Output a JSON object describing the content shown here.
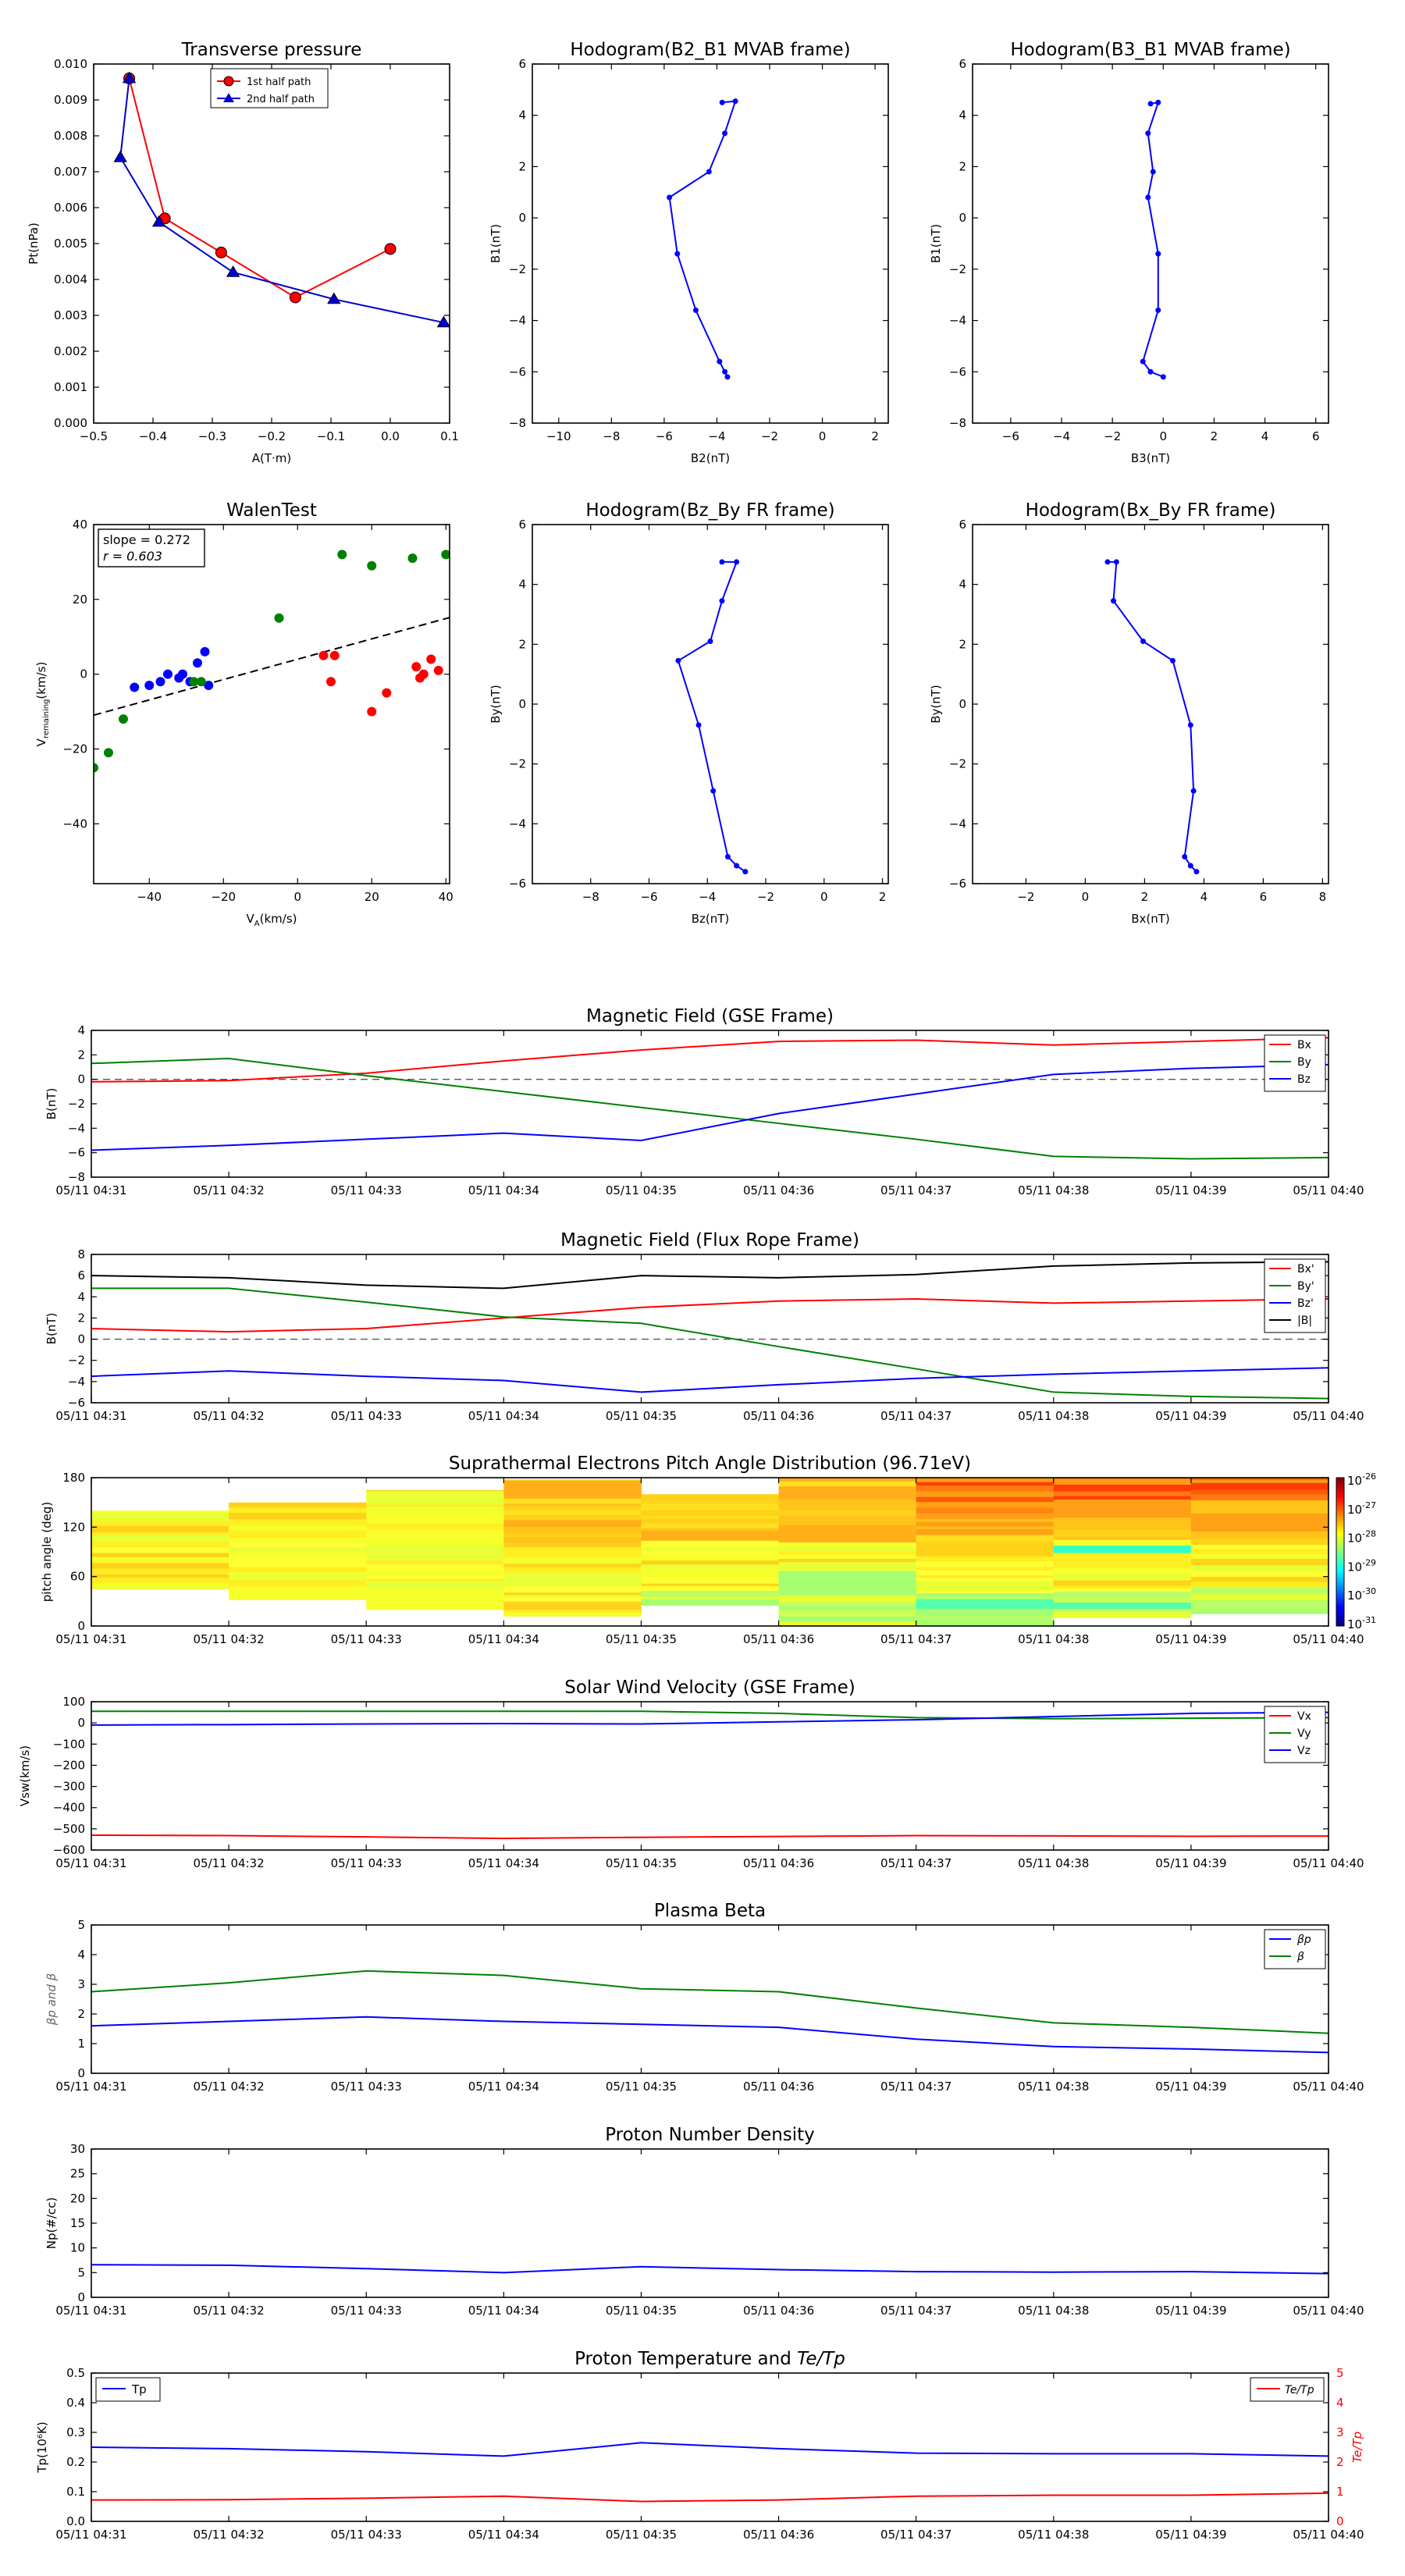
{
  "charts": [
    {
      "id": "tp",
      "title": "Transverse pressure",
      "xlabel": "A(T·m)",
      "ylabel": "Pt(nPa)",
      "xlim": [
        -0.5,
        0.1
      ],
      "ylim": [
        0.0,
        0.01
      ],
      "xticks": [
        -0.5,
        -0.4,
        -0.3,
        -0.2,
        -0.1,
        0.0,
        0.1
      ],
      "xtick_labels": [
        "−0.5",
        "−0.4",
        "−0.3",
        "−0.2",
        "−0.1",
        "0.0",
        "0.1"
      ],
      "yticks": [
        0,
        0.001,
        0.002,
        0.003,
        0.004,
        0.005,
        0.006,
        0.007,
        0.008,
        0.009,
        0.01
      ],
      "ytick_labels": [
        "0.000",
        "0.001",
        "0.002",
        "0.003",
        "0.004",
        "0.005",
        "0.006",
        "0.007",
        "0.008",
        "0.009",
        "0.010"
      ],
      "series": [
        {
          "name": "1st half path",
          "color": "#ff0000",
          "marker": "circle",
          "x": [
            0.0,
            -0.16,
            -0.285,
            -0.38,
            -0.44
          ],
          "y": [
            0.00485,
            0.0035,
            0.00475,
            0.0057,
            0.0096
          ]
        },
        {
          "name": "2nd half path",
          "color": "#0000cc",
          "marker": "triangle",
          "x": [
            -0.44,
            -0.455,
            -0.39,
            -0.265,
            -0.095,
            0.09
          ],
          "y": [
            0.0096,
            0.0074,
            0.0056,
            0.0042,
            0.00345,
            0.0028
          ]
        }
      ]
    },
    {
      "id": "h1",
      "title": "Hodogram(B2_B1 MVAB frame)",
      "xlabel": "B2(nT)",
      "ylabel": "B1(nT)",
      "xlim": [
        -11,
        2.5
      ],
      "ylim": [
        -8,
        6
      ],
      "xticks": [
        -10,
        -8,
        -6,
        -4,
        -2,
        0,
        2
      ],
      "xtick_labels": [
        "−10",
        "−8",
        "−6",
        "−4",
        "−2",
        "0",
        "2"
      ],
      "yticks": [
        -8,
        -6,
        -4,
        -2,
        0,
        2,
        4,
        6
      ],
      "ytick_labels": [
        "−8",
        "−6",
        "−4",
        "−2",
        "0",
        "2",
        "4",
        "6"
      ],
      "series": [
        {
          "color": "#0000ff",
          "marker": "dot",
          "x": [
            -3.8,
            -3.3,
            -3.7,
            -4.3,
            -5.8,
            -5.5,
            -4.8,
            -3.9,
            -3.7,
            -3.6
          ],
          "y": [
            4.5,
            4.55,
            3.3,
            1.8,
            0.8,
            -1.4,
            -3.6,
            -5.6,
            -6.0,
            -6.2
          ]
        }
      ]
    },
    {
      "id": "h2",
      "title": "Hodogram(B3_B1 MVAB frame)",
      "xlabel": "B3(nT)",
      "ylabel": "B1(nT)",
      "xlim": [
        -7.5,
        6.5
      ],
      "ylim": [
        -8,
        6
      ],
      "xticks": [
        -6,
        -4,
        -2,
        0,
        2,
        4,
        6
      ],
      "xtick_labels": [
        "−6",
        "−4",
        "−2",
        "0",
        "2",
        "4",
        "6"
      ],
      "yticks": [
        -8,
        -6,
        -4,
        -2,
        0,
        2,
        4,
        6
      ],
      "ytick_labels": [
        "−8",
        "−6",
        "−4",
        "−2",
        "0",
        "2",
        "4",
        "6"
      ],
      "series": [
        {
          "color": "#0000ff",
          "marker": "dot",
          "x": [
            -0.5,
            -0.2,
            -0.6,
            -0.4,
            -0.6,
            -0.2,
            -0.2,
            -0.8,
            -0.5,
            0.0
          ],
          "y": [
            4.45,
            4.5,
            3.3,
            1.8,
            0.8,
            -1.4,
            -3.6,
            -5.6,
            -6.0,
            -6.2
          ]
        }
      ]
    },
    {
      "id": "walen",
      "title": "WalenTest",
      "xlabel": "V_A(km/s)",
      "ylabel": "V_remaining(km/s)",
      "xlim": [
        -55,
        41
      ],
      "ylim": [
        -56,
        40
      ],
      "xticks": [
        -40,
        -20,
        0,
        20,
        40
      ],
      "xtick_labels": [
        "−40",
        "−20",
        "0",
        "20",
        "40"
      ],
      "yticks": [
        -40,
        -20,
        0,
        20,
        40
      ],
      "ytick_labels": [
        "−40",
        "−20",
        "0",
        "20",
        "40"
      ],
      "annotation": [
        "slope = 0.272",
        "r = 0.603"
      ],
      "fit": {
        "slope": 0.272,
        "intercept": 4.0
      },
      "series": [
        {
          "color": "#0000ff",
          "marker": "dot",
          "x": [
            -44,
            -40,
            -37,
            -35,
            -32,
            -31,
            -29,
            -27,
            -25,
            -24
          ],
          "y": [
            -3.5,
            -3,
            -2,
            0,
            -1,
            0,
            -2,
            3,
            6,
            -3
          ]
        },
        {
          "color": "#008000",
          "marker": "dot",
          "x": [
            -55,
            -51,
            -47,
            -28,
            -26,
            -5,
            12,
            20,
            31,
            40
          ],
          "y": [
            -25,
            -21,
            -12,
            -2,
            -2,
            15,
            32,
            29,
            31,
            32
          ]
        },
        {
          "color": "#ff0000",
          "marker": "dot",
          "x": [
            7,
            9,
            10,
            20,
            24,
            32,
            33,
            34,
            36,
            38
          ],
          "y": [
            5,
            -2,
            5,
            -10,
            -5,
            2,
            -1,
            0,
            4,
            1
          ]
        }
      ]
    },
    {
      "id": "h3",
      "title": "Hodogram(Bz_By FR frame)",
      "xlabel": "Bz(nT)",
      "ylabel": "By(nT)",
      "xlim": [
        -10,
        2.2
      ],
      "ylim": [
        -6,
        6
      ],
      "xticks": [
        -8,
        -6,
        -4,
        -2,
        0,
        2
      ],
      "xtick_labels": [
        "−8",
        "−6",
        "−4",
        "−2",
        "0",
        "2"
      ],
      "yticks": [
        -6,
        -4,
        -2,
        0,
        2,
        4,
        6
      ],
      "ytick_labels": [
        "−6",
        "−4",
        "−2",
        "0",
        "2",
        "4",
        "6"
      ],
      "series": [
        {
          "color": "#0000ff",
          "marker": "dot",
          "x": [
            -3.5,
            -3.0,
            -3.5,
            -3.9,
            -5.0,
            -4.3,
            -3.8,
            -3.3,
            -3.0,
            -2.7
          ],
          "y": [
            4.75,
            4.75,
            3.45,
            2.1,
            1.45,
            -0.7,
            -2.9,
            -5.1,
            -5.4,
            -5.6
          ]
        }
      ]
    },
    {
      "id": "h4",
      "title": "Hodogram(Bx_By FR frame)",
      "xlabel": "Bx(nT)",
      "ylabel": "By(nT)",
      "xlim": [
        -3.8,
        8.2
      ],
      "ylim": [
        -6,
        6
      ],
      "xticks": [
        -2,
        0,
        2,
        4,
        6,
        8
      ],
      "xtick_labels": [
        "−2",
        "0",
        "2",
        "4",
        "6",
        "8"
      ],
      "yticks": [
        -6,
        -4,
        -2,
        0,
        2,
        4,
        6
      ],
      "ytick_labels": [
        "−6",
        "−4",
        "−2",
        "0",
        "2",
        "4",
        "6"
      ],
      "series": [
        {
          "color": "#0000ff",
          "marker": "dot",
          "x": [
            0.75,
            1.05,
            0.95,
            1.95,
            2.95,
            3.55,
            3.65,
            3.35,
            3.55,
            3.75
          ],
          "y": [
            4.75,
            4.75,
            3.45,
            2.1,
            1.45,
            -0.7,
            -2.9,
            -5.1,
            -5.4,
            -5.6
          ]
        }
      ]
    }
  ],
  "time_labels": [
    "05/11 04:31",
    "05/11 04:32",
    "05/11 04:33",
    "05/11 04:34",
    "05/11 04:35",
    "05/11 04:36",
    "05/11 04:37",
    "05/11 04:38",
    "05/11 04:39",
    "05/11 04:40"
  ],
  "panels": [
    {
      "id": "mf_gse",
      "title": "Magnetic Field (GSE Frame)",
      "ylabel": "B(nT)",
      "ylim": [
        -8,
        4
      ],
      "yticks": [
        -8,
        -6,
        -4,
        -2,
        0,
        2,
        4
      ],
      "ytick_labels": [
        "−8",
        "−6",
        "−4",
        "−2",
        "0",
        "2",
        "4"
      ],
      "zero_line": true,
      "legend": "right",
      "series": [
        {
          "name": "Bx",
          "color": "#ff0000",
          "values": [
            -0.2,
            -0.1,
            0.5,
            1.5,
            2.4,
            3.1,
            3.2,
            2.8,
            3.1,
            3.4
          ]
        },
        {
          "name": "By",
          "color": "#008000",
          "values": [
            1.3,
            1.7,
            0.3,
            -1.0,
            -2.3,
            -3.6,
            -4.9,
            -6.3,
            -6.5,
            -6.4
          ]
        },
        {
          "name": "Bz",
          "color": "#0000ff",
          "values": [
            -5.8,
            -5.4,
            -4.9,
            -4.4,
            -5.0,
            -2.8,
            -1.2,
            0.4,
            0.9,
            1.2
          ]
        }
      ]
    },
    {
      "id": "mf_fr",
      "title": "Magnetic Field (Flux Rope Frame)",
      "ylabel": "B(nT)",
      "ylim": [
        -6,
        8
      ],
      "yticks": [
        -6,
        -4,
        -2,
        0,
        2,
        4,
        6,
        8
      ],
      "ytick_labels": [
        "−6",
        "−4",
        "−2",
        "0",
        "2",
        "4",
        "6",
        "8"
      ],
      "zero_line": true,
      "legend": "right",
      "series": [
        {
          "name": "Bx'",
          "color": "#ff0000",
          "values": [
            1.0,
            0.7,
            1.0,
            2.0,
            3.0,
            3.6,
            3.8,
            3.4,
            3.6,
            3.8
          ]
        },
        {
          "name": "By'",
          "color": "#008000",
          "values": [
            4.8,
            4.8,
            3.5,
            2.1,
            1.5,
            -0.7,
            -2.8,
            -5.0,
            -5.4,
            -5.6
          ]
        },
        {
          "name": "Bz'",
          "color": "#0000ff",
          "values": [
            -3.5,
            -3.0,
            -3.5,
            -3.9,
            -5.0,
            -4.3,
            -3.7,
            -3.3,
            -3.0,
            -2.7
          ]
        },
        {
          "name": "|B|",
          "color": "#000000",
          "values": [
            6.0,
            5.8,
            5.1,
            4.8,
            6.0,
            5.8,
            6.1,
            6.9,
            7.2,
            7.3
          ]
        }
      ]
    },
    {
      "id": "pad",
      "title": "Suprathermal Electrons Pitch Angle Distribution (96.71eV)",
      "ylabel": "pitch angle (deg)",
      "ylim": [
        0,
        180
      ],
      "yticks": [
        0,
        60,
        120,
        180
      ],
      "ytick_labels": [
        "0",
        "60",
        "120",
        "180"
      ],
      "heatmap": true,
      "colorbar_labels": [
        "10",
        "-26",
        "10",
        "-27",
        "10",
        "-28",
        "10",
        "-29",
        "10",
        "-30",
        "10",
        "-31"
      ],
      "colorbar_stops": [
        "#800000",
        "#ff0000",
        "#ff8000",
        "#ffff00",
        "#80ff80",
        "#00ffff",
        "#0080ff",
        "#0000ff",
        "#000080"
      ]
    },
    {
      "id": "vsw",
      "title": "Solar Wind Velocity (GSE Frame)",
      "ylabel": "Vsw(km/s)",
      "ylim": [
        -600,
        100
      ],
      "yticks": [
        -600,
        -500,
        -400,
        -300,
        -200,
        -100,
        0,
        100
      ],
      "ytick_labels": [
        "−600",
        "−500",
        "−400",
        "−300",
        "−200",
        "−100",
        "0",
        "100"
      ],
      "zero_line": false,
      "legend": "right",
      "series": [
        {
          "name": "Vx",
          "color": "#ff0000",
          "values": [
            -530,
            -532,
            -538,
            -545,
            -540,
            -536,
            -532,
            -533,
            -535,
            -534
          ]
        },
        {
          "name": "Vy",
          "color": "#008000",
          "values": [
            55,
            55,
            55,
            55,
            55,
            45,
            25,
            20,
            22,
            25
          ]
        },
        {
          "name": "Vz",
          "color": "#0000ff",
          "values": [
            -10,
            -8,
            -5,
            -3,
            -5,
            5,
            15,
            30,
            45,
            50
          ]
        }
      ]
    },
    {
      "id": "beta",
      "title": "Plasma Beta",
      "ylabel": "βp and β",
      "ylim": [
        0,
        5
      ],
      "yticks": [
        0,
        1,
        2,
        3,
        4,
        5
      ],
      "ytick_labels": [
        "0",
        "1",
        "2",
        "3",
        "4",
        "5"
      ],
      "zero_line": false,
      "legend": "right",
      "series": [
        {
          "name": "βp",
          "color": "#0000ff",
          "values": [
            1.6,
            1.75,
            1.9,
            1.75,
            1.65,
            1.55,
            1.15,
            0.9,
            0.82,
            0.7
          ]
        },
        {
          "name": "β",
          "color": "#008000",
          "values": [
            2.75,
            3.05,
            3.45,
            3.3,
            2.85,
            2.75,
            2.2,
            1.7,
            1.55,
            1.35
          ]
        }
      ]
    },
    {
      "id": "np",
      "title": "Proton Number Density",
      "ylabel": "Np(#/cc)",
      "ylim": [
        0,
        30
      ],
      "yticks": [
        0,
        5,
        10,
        15,
        20,
        25,
        30
      ],
      "ytick_labels": [
        "0",
        "5",
        "10",
        "15",
        "20",
        "25",
        "30"
      ],
      "zero_line": false,
      "legend": "none",
      "series": [
        {
          "name": "Np",
          "color": "#0000ff",
          "values": [
            6.6,
            6.5,
            5.8,
            5.0,
            6.2,
            5.6,
            5.2,
            5.1,
            5.2,
            4.8
          ]
        }
      ]
    },
    {
      "id": "temp",
      "title": "Proton Temperature and Te/Tp",
      "ylabel": "Tp(10⁶K)",
      "ylabel2": "Te/Tp",
      "ylim": [
        0,
        0.5
      ],
      "ylim2": [
        0,
        5
      ],
      "yticks": [
        0,
        0.1,
        0.2,
        0.3,
        0.4,
        0.5
      ],
      "ytick_labels": [
        "0.0",
        "0.1",
        "0.2",
        "0.3",
        "0.4",
        "0.5"
      ],
      "yticks2": [
        0,
        1,
        2,
        3,
        4,
        5
      ],
      "ytick_labels2": [
        "0",
        "1",
        "2",
        "3",
        "4",
        "5"
      ],
      "zero_line": false,
      "legend": "split",
      "series": [
        {
          "name": "Tp",
          "color": "#0000ff",
          "axis": 1,
          "values": [
            0.25,
            0.245,
            0.235,
            0.22,
            0.265,
            0.245,
            0.23,
            0.228,
            0.228,
            0.22
          ]
        },
        {
          "name": "Te/Tp",
          "color": "#ff0000",
          "axis": 2,
          "values": [
            0.72,
            0.73,
            0.78,
            0.85,
            0.67,
            0.72,
            0.85,
            0.88,
            0.88,
            0.95
          ]
        }
      ]
    }
  ]
}
